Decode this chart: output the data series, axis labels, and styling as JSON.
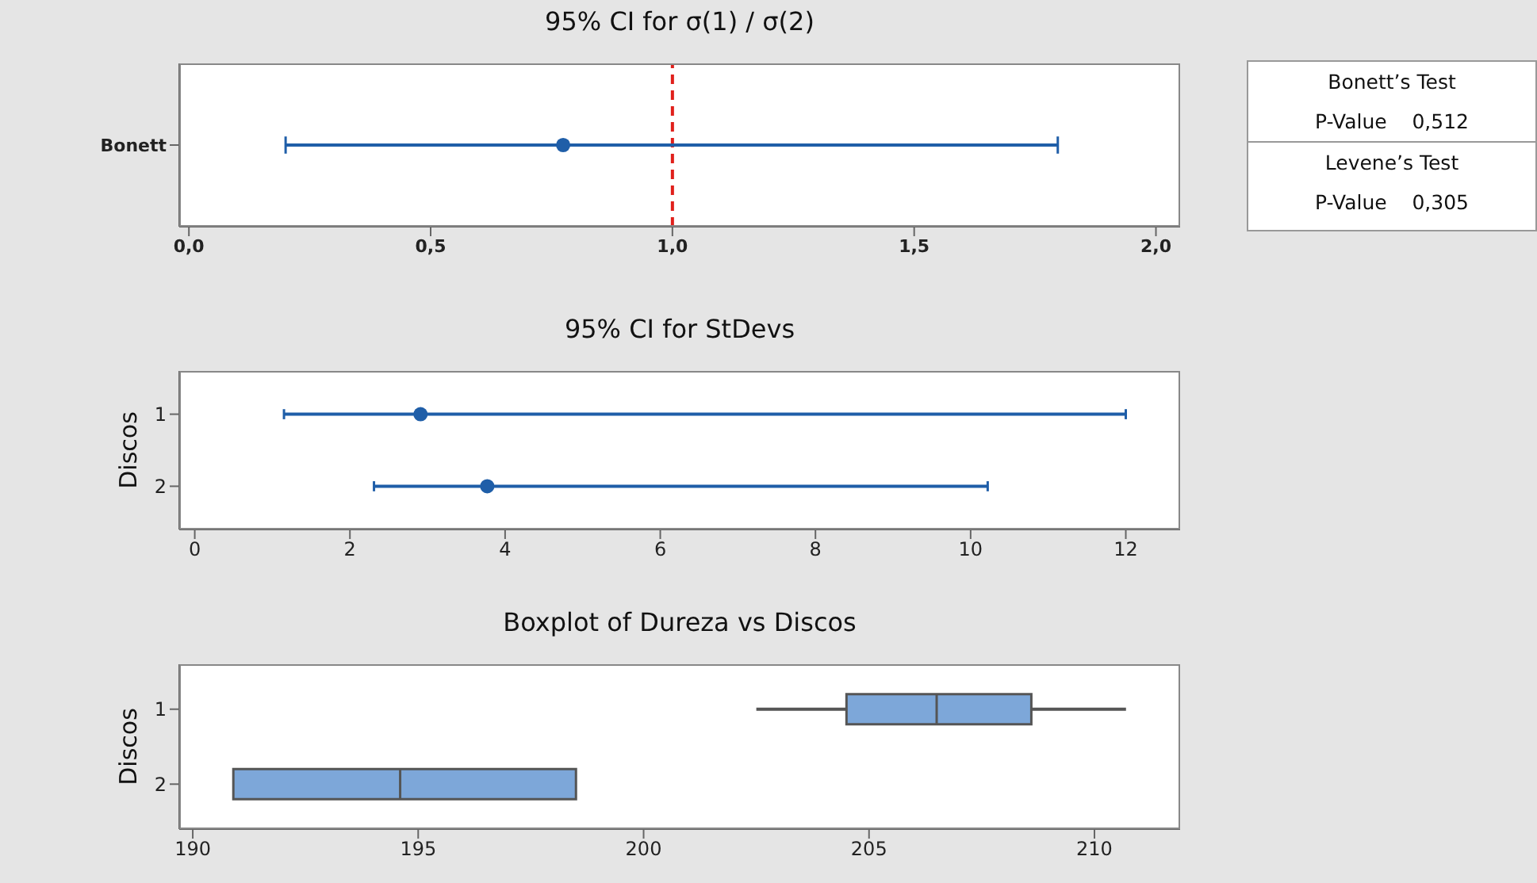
{
  "chart_data": [
    {
      "type": "scatter",
      "title": "95% CI for σ(1) / σ(2)",
      "orientation": "horizontal",
      "categories": [
        "Bonett"
      ],
      "values": [
        0.774
      ],
      "errors": [
        [
          0.2,
          1.797
        ]
      ],
      "color": "#1f5ea8",
      "marker": "circle",
      "xlim": [
        -0.02,
        2.05
      ],
      "xticks": [
        {
          "value": 0,
          "label": "0,0"
        },
        {
          "value": 0.5,
          "label": "0,5"
        },
        {
          "value": 1,
          "label": "1,0"
        },
        {
          "value": 1.5,
          "label": "1,5"
        },
        {
          "value": 2,
          "label": "2,0"
        }
      ],
      "ref_lines": [
        {
          "axis": "x",
          "value": 1,
          "color": "#e0201b",
          "line_style": "dashed"
        }
      ]
    },
    {
      "type": "scatter",
      "title": "95% CI for StDevs",
      "ylabel": "Discos",
      "orientation": "horizontal",
      "categories": [
        "1",
        "2"
      ],
      "values": [
        2.91,
        3.77
      ],
      "errors": [
        [
          1.15,
          12.0
        ],
        [
          2.31,
          10.22
        ]
      ],
      "color": "#1f5ea8",
      "marker": "circle",
      "xlim": [
        -0.2,
        12.7
      ],
      "xticks": [
        0,
        2,
        4,
        6,
        8,
        10,
        12
      ]
    },
    {
      "type": "box",
      "title": "Boxplot of Dureza vs Discos",
      "ylabel": "Discos",
      "orientation": "horizontal",
      "categories": [
        "1",
        "2"
      ],
      "color": "#7da7d9",
      "boxes": [
        {
          "low": 202.5,
          "q1": 204.5,
          "median": 206.5,
          "q3": 208.6,
          "high": 210.7
        },
        {
          "low": 190.9,
          "q1": 190.9,
          "median": 194.6,
          "q3": 198.5,
          "high": 198.5
        }
      ],
      "xlim": [
        189.7,
        211.9
      ],
      "xticks": [
        190,
        195,
        200,
        205,
        210
      ]
    },
    {
      "type": "other",
      "annotations": [
        "Bonett’s Test",
        "P-Value    0,512",
        "Levene’s Test",
        "P-Value    0,305"
      ]
    }
  ]
}
